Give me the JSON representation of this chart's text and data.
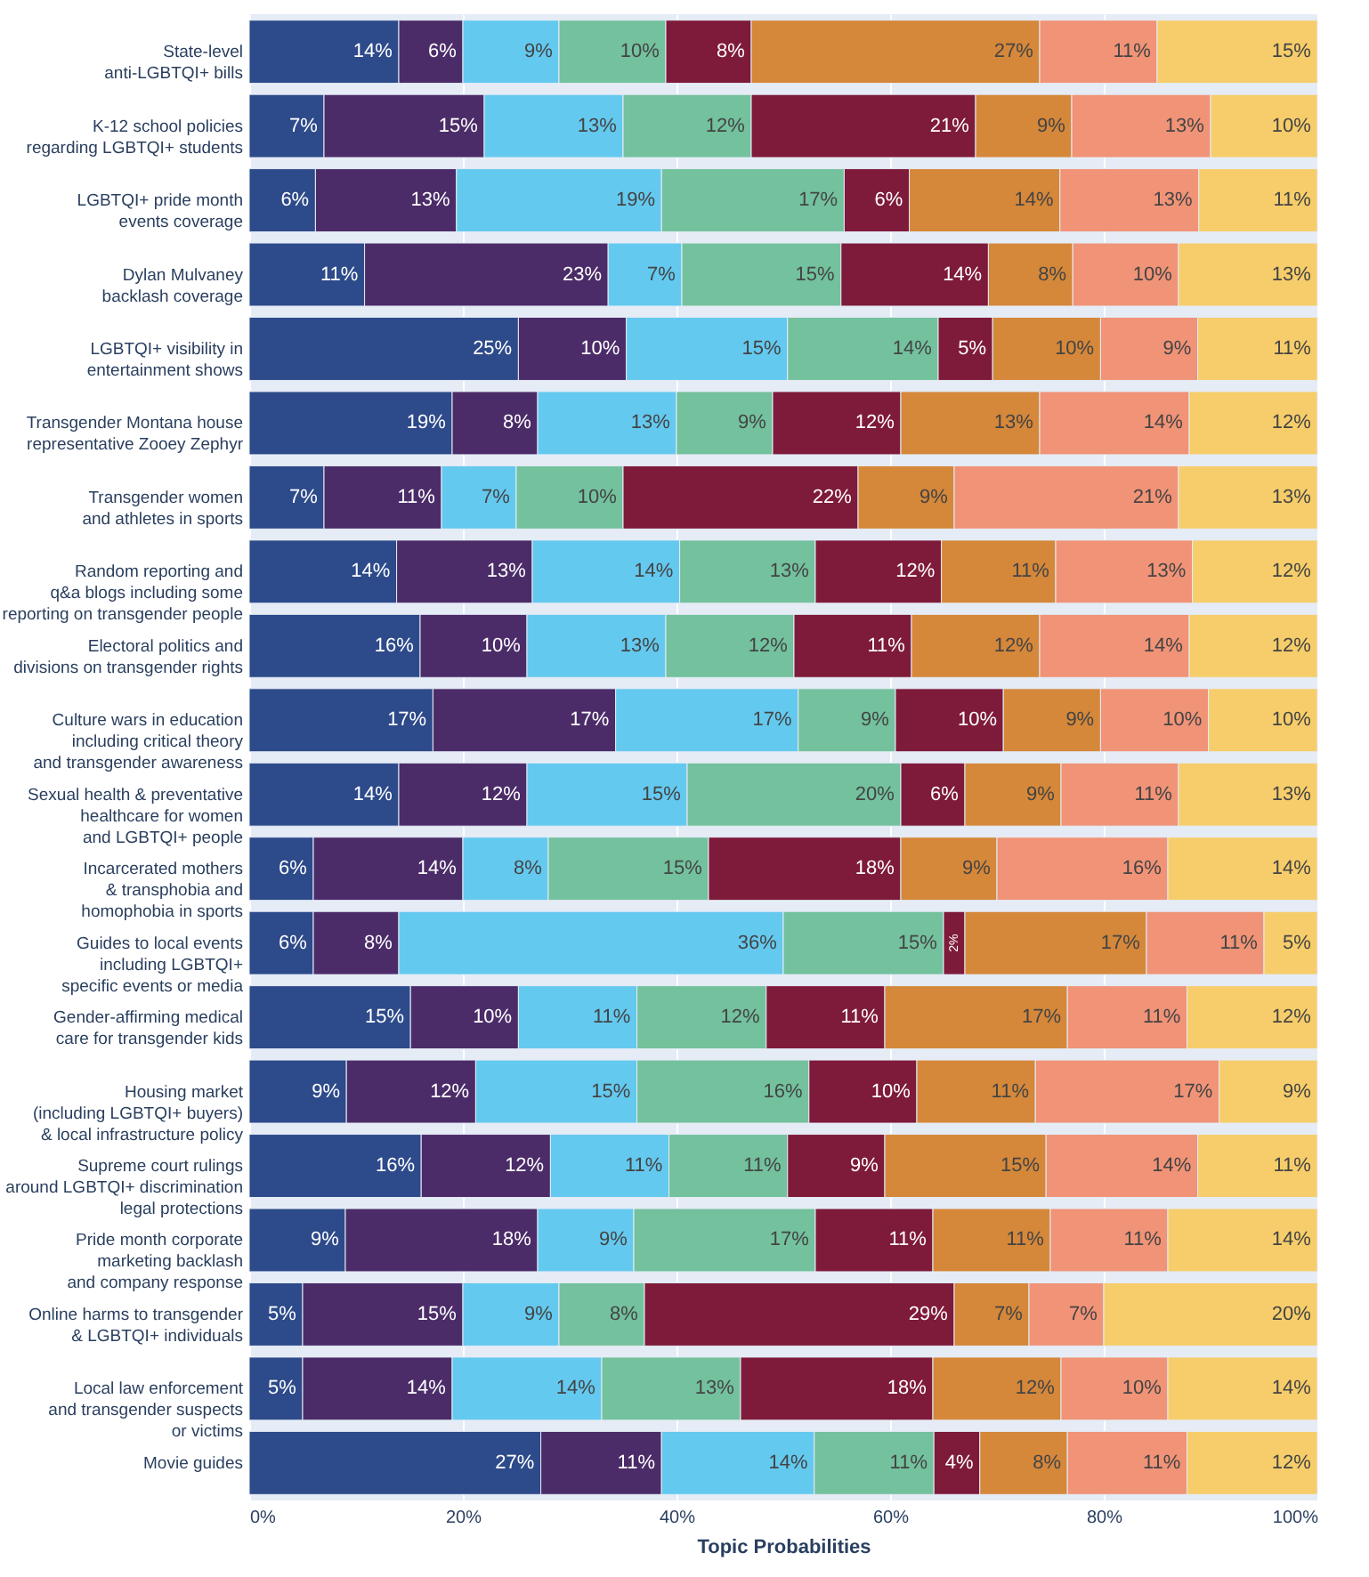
{
  "chart_data": {
    "type": "bar",
    "orientation": "horizontal",
    "stacked": true,
    "xlabel": "Topic Probabilities",
    "categories": [
      "State-level\nanti-LGBTQI+ bills",
      "K-12 school policies\nregarding LGBTQI+ students",
      "LGBTQI+ pride month\nevents coverage",
      "Dylan Mulvaney\nbacklash coverage",
      "LGBTQI+ visibility in\nentertainment shows",
      "Transgender Montana house\nrepresentative Zooey Zephyr",
      "Transgender women\nand athletes in sports",
      "Random reporting and\nq&a blogs including some\nreporting on transgender people",
      "Electoral politics and\ndivisions on transgender rights",
      "Culture wars in education\nincluding critical theory\nand transgender awareness",
      "Sexual health & preventative\nhealthcare for women\nand LGBTQI+ people",
      "Incarcerated mothers\n& transphobia and\nhomophobia in sports",
      "Guides to local events\nincluding LGBTQI+\nspecific events or media",
      "Gender-affirming medical\ncare for transgender kids",
      "Housing market\n(including LGBTQI+ buyers)\n& local infrastructure policy",
      "Supreme court rulings\naround LGBTQI+ discrimination\nlegal protections",
      "Pride month corporate\nmarketing backlash\nand company response",
      "Online harms to transgender\n& LGBTQI+ individuals",
      "Local law enforcement\nand transgender suspects\nor victims",
      "Movie guides"
    ],
    "series": [
      {
        "color": "#2d4a8a",
        "values": [
          14,
          7,
          6.2,
          10.8,
          25.2,
          19,
          7,
          13.8,
          16,
          17.2,
          14,
          6,
          6,
          15.1,
          9.1,
          16.1,
          9,
          5,
          5,
          27.3
        ],
        "value_labels": [
          "14%",
          "7%",
          "6%",
          "11%",
          "25%",
          "19%",
          "7%",
          "14%",
          "16%",
          "17%",
          "14%",
          "6%",
          "6%",
          "15%",
          "9%",
          "16%",
          "9%",
          "5%",
          "5%",
          "27%"
        ]
      },
      {
        "color": "#4b2c68",
        "values": [
          6,
          15,
          13.2,
          22.8,
          10.1,
          8,
          11,
          12.7,
          10,
          17.1,
          12,
          14,
          8,
          10.1,
          12.1,
          12.1,
          18,
          15,
          14,
          11.3
        ],
        "value_labels": [
          "6%",
          "15%",
          "13%",
          "23%",
          "10%",
          "8%",
          "11%",
          "13%",
          "10%",
          "17%",
          "12%",
          "14%",
          "8%",
          "10%",
          "12%",
          "12%",
          "18%",
          "15%",
          "14%",
          "11%"
        ]
      },
      {
        "color": "#64c9ef",
        "values": [
          9,
          13,
          19.2,
          6.9,
          15.1,
          13,
          7,
          13.8,
          13,
          17.1,
          15,
          8,
          36,
          11.1,
          15.1,
          11.1,
          9,
          9,
          14,
          14.3
        ],
        "value_labels": [
          "9%",
          "13%",
          "19%",
          "7%",
          "15%",
          "13%",
          "7%",
          "14%",
          "13%",
          "17%",
          "15%",
          "8%",
          "36%",
          "11%",
          "15%",
          "11%",
          "9%",
          "9%",
          "14%",
          "14%"
        ]
      },
      {
        "color": "#73c19d",
        "values": [
          10,
          12,
          17.1,
          14.9,
          14.1,
          9,
          10,
          12.7,
          12,
          9.1,
          20,
          15,
          15,
          12.1,
          16.1,
          11.1,
          17,
          8,
          13,
          11.2
        ],
        "value_labels": [
          "10%",
          "12%",
          "17%",
          "15%",
          "14%",
          "9%",
          "10%",
          "13%",
          "12%",
          "9%",
          "20%",
          "15%",
          "15%",
          "12%",
          "16%",
          "11%",
          "17%",
          "8%",
          "13%",
          "11%"
        ]
      },
      {
        "color": "#7e1a3a",
        "values": [
          8,
          21,
          6.1,
          13.8,
          5.1,
          12,
          22,
          11.8,
          11,
          10.1,
          6,
          18,
          2,
          11.1,
          10.1,
          9.1,
          11,
          29,
          18,
          4.3
        ],
        "value_labels": [
          "8%",
          "21%",
          "6%",
          "14%",
          "5%",
          "12%",
          "22%",
          "12%",
          "11%",
          "10%",
          "6%",
          "18%",
          "2%",
          "11%",
          "10%",
          "9%",
          "11%",
          "29%",
          "18%",
          "4%"
        ]
      },
      {
        "color": "#d5873a",
        "values": [
          27,
          9,
          14.1,
          7.9,
          10.1,
          13,
          9,
          10.7,
          12,
          9.1,
          9,
          9,
          17,
          17.1,
          11.1,
          15.1,
          11,
          7,
          12,
          8.2
        ],
        "value_labels": [
          "27%",
          "9%",
          "14%",
          "8%",
          "10%",
          "13%",
          "9%",
          "11%",
          "12%",
          "9%",
          "9%",
          "9%",
          "17%",
          "17%",
          "11%",
          "15%",
          "11%",
          "7%",
          "12%",
          "8%"
        ]
      },
      {
        "color": "#f09377",
        "values": [
          11,
          13,
          13.0,
          9.9,
          9.1,
          14,
          21,
          12.8,
          14,
          10.1,
          11,
          16,
          11,
          11.2,
          17.2,
          14.2,
          11,
          7,
          10,
          11.2
        ],
        "value_labels": [
          "11%",
          "13%",
          "13%",
          "10%",
          "9%",
          "14%",
          "21%",
          "13%",
          "14%",
          "10%",
          "11%",
          "16%",
          "11%",
          "11%",
          "17%",
          "14%",
          "11%",
          "7%",
          "10%",
          "11%"
        ]
      },
      {
        "color": "#f6cd6a",
        "values": [
          15,
          10,
          11.1,
          13.0,
          11.2,
          12,
          13,
          11.7,
          12,
          10.2,
          13,
          14,
          5,
          12.2,
          9.2,
          11.2,
          14,
          20,
          14,
          12.2
        ],
        "value_labels": [
          "15%",
          "10%",
          "11%",
          "13%",
          "11%",
          "12%",
          "13%",
          "12%",
          "12%",
          "10%",
          "13%",
          "14%",
          "5%",
          "12%",
          "9%",
          "11%",
          "14%",
          "20%",
          "14%",
          "12%"
        ]
      }
    ],
    "xlim": [
      0,
      100
    ],
    "xticks": [
      {
        "value": 0,
        "label": "0%"
      },
      {
        "value": 20,
        "label": "20%"
      },
      {
        "value": 40,
        "label": "40%"
      },
      {
        "value": 60,
        "label": "60%"
      },
      {
        "value": 80,
        "label": "80%"
      },
      {
        "value": 100,
        "label": "100%"
      }
    ],
    "grid": "x"
  }
}
